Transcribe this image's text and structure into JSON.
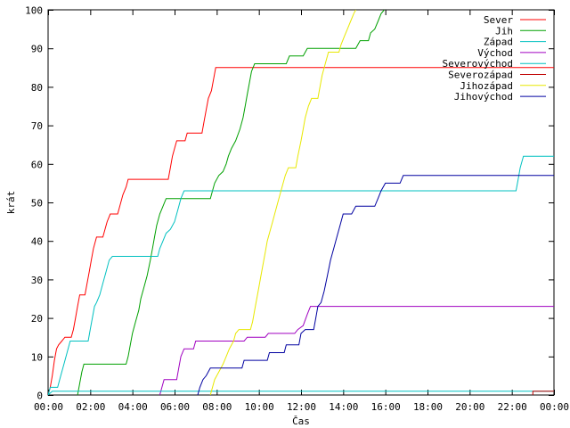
{
  "chart_data": {
    "type": "line",
    "title": "",
    "xlabel": "Čas",
    "ylabel": "krát",
    "xlim": [
      0,
      24
    ],
    "ylim": [
      0,
      100
    ],
    "x_ticks": [
      "00:00",
      "02:00",
      "04:00",
      "06:00",
      "08:00",
      "10:00",
      "12:00",
      "14:00",
      "16:00",
      "18:00",
      "20:00",
      "22:00",
      "00:00"
    ],
    "y_ticks": [
      0,
      10,
      20,
      30,
      40,
      50,
      60,
      70,
      80,
      90,
      100
    ],
    "grid": false,
    "legend_position": "top-right",
    "series": [
      {
        "name": "Sever",
        "color": "#ff0000",
        "points": [
          [
            0,
            0
          ],
          [
            0.1,
            2
          ],
          [
            0.2,
            5
          ],
          [
            0.3,
            9
          ],
          [
            0.4,
            12
          ],
          [
            0.5,
            13
          ],
          [
            0.65,
            14
          ],
          [
            0.8,
            15
          ],
          [
            1.1,
            15
          ],
          [
            1.2,
            17
          ],
          [
            1.3,
            20
          ],
          [
            1.4,
            23
          ],
          [
            1.5,
            26
          ],
          [
            1.75,
            26
          ],
          [
            1.85,
            29
          ],
          [
            1.95,
            32
          ],
          [
            2.05,
            35
          ],
          [
            2.15,
            38
          ],
          [
            2.3,
            41
          ],
          [
            2.6,
            41
          ],
          [
            2.7,
            43
          ],
          [
            2.8,
            45
          ],
          [
            2.95,
            47
          ],
          [
            3.3,
            47
          ],
          [
            3.4,
            49
          ],
          [
            3.55,
            52
          ],
          [
            3.7,
            54
          ],
          [
            3.8,
            56
          ],
          [
            5.7,
            56
          ],
          [
            5.8,
            59
          ],
          [
            5.9,
            62
          ],
          [
            6.0,
            64
          ],
          [
            6.1,
            66
          ],
          [
            6.5,
            66
          ],
          [
            6.6,
            68
          ],
          [
            7.3,
            68
          ],
          [
            7.4,
            71
          ],
          [
            7.5,
            74
          ],
          [
            7.6,
            77
          ],
          [
            7.75,
            79
          ],
          [
            7.85,
            82
          ],
          [
            7.95,
            85
          ],
          [
            24,
            85
          ]
        ]
      },
      {
        "name": "Jih",
        "color": "#00a000",
        "points": [
          [
            1.4,
            0
          ],
          [
            1.5,
            3
          ],
          [
            1.6,
            6
          ],
          [
            1.7,
            8
          ],
          [
            3.7,
            8
          ],
          [
            3.8,
            10
          ],
          [
            3.9,
            13
          ],
          [
            4.0,
            16
          ],
          [
            4.15,
            19
          ],
          [
            4.3,
            22
          ],
          [
            4.4,
            25
          ],
          [
            4.55,
            28
          ],
          [
            4.7,
            31
          ],
          [
            4.85,
            35
          ],
          [
            4.95,
            38
          ],
          [
            5.05,
            41
          ],
          [
            5.15,
            44
          ],
          [
            5.3,
            47
          ],
          [
            5.45,
            49
          ],
          [
            5.6,
            51
          ],
          [
            7.7,
            51
          ],
          [
            7.8,
            53
          ],
          [
            7.9,
            55
          ],
          [
            8.1,
            57
          ],
          [
            8.3,
            58
          ],
          [
            8.45,
            60
          ],
          [
            8.55,
            62
          ],
          [
            8.7,
            64
          ],
          [
            8.9,
            66
          ],
          [
            9.1,
            69
          ],
          [
            9.25,
            72
          ],
          [
            9.35,
            75
          ],
          [
            9.45,
            78
          ],
          [
            9.55,
            81
          ],
          [
            9.65,
            84
          ],
          [
            9.8,
            86
          ],
          [
            11.3,
            86
          ],
          [
            11.45,
            88
          ],
          [
            12.1,
            88
          ],
          [
            12.3,
            90
          ],
          [
            14.6,
            90
          ],
          [
            14.8,
            92
          ],
          [
            15.2,
            92
          ],
          [
            15.3,
            94
          ],
          [
            15.5,
            95
          ],
          [
            15.65,
            97
          ],
          [
            15.8,
            99
          ],
          [
            15.95,
            100
          ]
        ]
      },
      {
        "name": "Západ",
        "color": "#00c0c0",
        "points": [
          [
            0,
            0
          ],
          [
            0.1,
            2
          ],
          [
            0.45,
            2
          ],
          [
            0.6,
            5
          ],
          [
            0.75,
            8
          ],
          [
            0.9,
            11
          ],
          [
            1.05,
            14
          ],
          [
            1.9,
            14
          ],
          [
            2.0,
            17
          ],
          [
            2.1,
            20
          ],
          [
            2.2,
            23
          ],
          [
            2.3,
            24
          ],
          [
            2.45,
            26
          ],
          [
            2.6,
            29
          ],
          [
            2.75,
            32
          ],
          [
            2.9,
            35
          ],
          [
            3.05,
            36
          ],
          [
            5.2,
            36
          ],
          [
            5.3,
            38
          ],
          [
            5.45,
            40
          ],
          [
            5.6,
            42
          ],
          [
            5.8,
            43
          ],
          [
            6.0,
            45
          ],
          [
            6.15,
            48
          ],
          [
            6.3,
            51
          ],
          [
            6.45,
            53
          ],
          [
            22.2,
            53
          ],
          [
            22.3,
            56
          ],
          [
            22.4,
            59
          ],
          [
            22.55,
            62
          ],
          [
            24,
            62
          ]
        ]
      },
      {
        "name": "Východ",
        "color": "#a000c0",
        "points": [
          [
            5.3,
            0
          ],
          [
            5.4,
            2
          ],
          [
            5.5,
            4
          ],
          [
            6.1,
            4
          ],
          [
            6.2,
            7
          ],
          [
            6.3,
            10
          ],
          [
            6.45,
            12
          ],
          [
            6.9,
            12
          ],
          [
            7.0,
            14
          ],
          [
            9.3,
            14
          ],
          [
            9.45,
            15
          ],
          [
            10.3,
            15
          ],
          [
            10.45,
            16
          ],
          [
            11.7,
            16
          ],
          [
            11.85,
            17
          ],
          [
            12.1,
            18
          ],
          [
            12.3,
            21
          ],
          [
            12.45,
            23
          ],
          [
            24,
            23
          ]
        ]
      },
      {
        "name": "Severovýchod",
        "color": "#00c0c0",
        "points": [
          [
            0,
            0
          ],
          [
            0.2,
            1
          ],
          [
            24,
            1
          ]
        ]
      },
      {
        "name": "Severozápad",
        "color": "#c00000",
        "points": [
          [
            23.0,
            0
          ],
          [
            23.0,
            1
          ],
          [
            24,
            1
          ]
        ]
      },
      {
        "name": "Jihozápad",
        "color": "#e8e800",
        "points": [
          [
            7.7,
            0
          ],
          [
            7.8,
            2
          ],
          [
            7.9,
            4
          ],
          [
            8.1,
            6
          ],
          [
            8.3,
            8
          ],
          [
            8.45,
            10
          ],
          [
            8.6,
            12
          ],
          [
            8.8,
            14
          ],
          [
            8.9,
            16
          ],
          [
            9.05,
            17
          ],
          [
            9.6,
            17
          ],
          [
            9.7,
            19
          ],
          [
            9.8,
            22
          ],
          [
            9.9,
            25
          ],
          [
            10.0,
            28
          ],
          [
            10.1,
            31
          ],
          [
            10.2,
            34
          ],
          [
            10.3,
            37
          ],
          [
            10.4,
            40
          ],
          [
            10.5,
            42
          ],
          [
            10.65,
            45
          ],
          [
            10.8,
            48
          ],
          [
            10.95,
            51
          ],
          [
            11.1,
            54
          ],
          [
            11.25,
            57
          ],
          [
            11.4,
            59
          ],
          [
            11.75,
            59
          ],
          [
            11.85,
            62
          ],
          [
            12.0,
            66
          ],
          [
            12.1,
            69
          ],
          [
            12.2,
            72
          ],
          [
            12.35,
            75
          ],
          [
            12.5,
            77
          ],
          [
            12.8,
            77
          ],
          [
            12.9,
            80
          ],
          [
            13.0,
            83
          ],
          [
            13.15,
            86
          ],
          [
            13.3,
            89
          ],
          [
            13.8,
            89
          ],
          [
            13.9,
            91
          ],
          [
            14.05,
            93
          ],
          [
            14.2,
            95
          ],
          [
            14.35,
            97
          ],
          [
            14.5,
            99
          ],
          [
            14.6,
            100
          ]
        ]
      },
      {
        "name": "Jihovýchod",
        "color": "#0000a0",
        "points": [
          [
            7.1,
            0
          ],
          [
            7.2,
            2
          ],
          [
            7.35,
            4
          ],
          [
            7.5,
            5
          ],
          [
            7.7,
            7
          ],
          [
            9.2,
            7
          ],
          [
            9.3,
            9
          ],
          [
            10.4,
            9
          ],
          [
            10.5,
            11
          ],
          [
            11.2,
            11
          ],
          [
            11.3,
            13
          ],
          [
            11.9,
            13
          ],
          [
            12.0,
            16
          ],
          [
            12.2,
            17
          ],
          [
            12.6,
            17
          ],
          [
            12.7,
            20
          ],
          [
            12.8,
            23
          ],
          [
            12.95,
            24
          ],
          [
            13.1,
            27
          ],
          [
            13.25,
            31
          ],
          [
            13.4,
            35
          ],
          [
            13.55,
            38
          ],
          [
            13.7,
            41
          ],
          [
            13.85,
            44
          ],
          [
            14.0,
            47
          ],
          [
            14.4,
            47
          ],
          [
            14.6,
            49
          ],
          [
            15.5,
            49
          ],
          [
            15.65,
            51
          ],
          [
            15.8,
            53
          ],
          [
            16.0,
            55
          ],
          [
            16.7,
            55
          ],
          [
            16.85,
            57
          ],
          [
            24,
            57
          ]
        ]
      }
    ]
  }
}
